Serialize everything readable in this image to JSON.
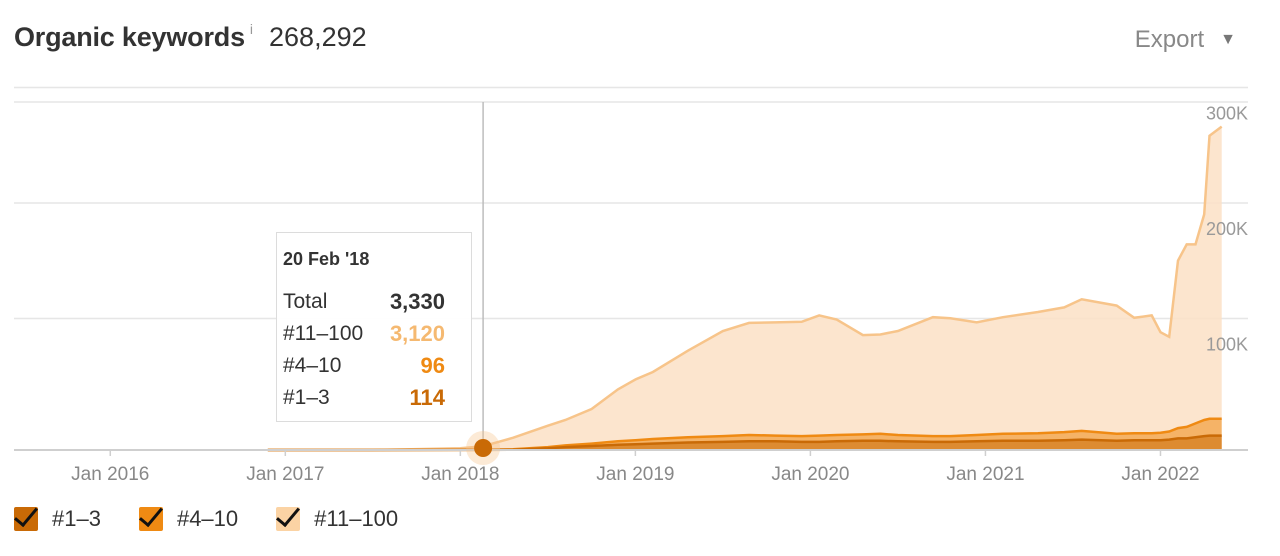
{
  "header": {
    "title": "Organic keywords",
    "info_icon": "i",
    "total": "268,292",
    "export_label": "Export",
    "export_caret": "▼"
  },
  "colors": {
    "band_1_3": "#c96a06",
    "band_4_10": "#ef8a13",
    "band_11_100": "#f7c48a",
    "fill_11_100": "#fbe1c5"
  },
  "tooltip": {
    "date": "20 Feb '18",
    "rows": [
      {
        "label": "Total",
        "value": "3,330",
        "color": "#333333"
      },
      {
        "label": "#11–100",
        "value": "3,120",
        "color": "#f5b971"
      },
      {
        "label": "#4–10",
        "value": "96",
        "color": "#ef8a13"
      },
      {
        "label": "#1–3",
        "value": "114",
        "color": "#c96a06"
      }
    ]
  },
  "legend": [
    {
      "label": "#1–3",
      "color": "#c96a06",
      "checked": true
    },
    {
      "label": "#4–10",
      "color": "#ef8a13",
      "checked": true
    },
    {
      "label": "#11–100",
      "color": "#fbd3a4",
      "checked": true
    }
  ],
  "chart_data": {
    "type": "area",
    "stacked": true,
    "x_ticks": [
      "Jan 2016",
      "Jan 2017",
      "Jan 2018",
      "Jan 2019",
      "Jan 2020",
      "Jan 2021",
      "Jan 2022"
    ],
    "y_ticks": [
      "100K",
      "200K",
      "300K"
    ],
    "ylim": [
      0,
      300000
    ],
    "xlim": [
      2015.45,
      2022.5
    ],
    "grid": true,
    "hover_x": 2018.13,
    "x": [
      2016.9,
      2017.5,
      2018.0,
      2018.13,
      2018.3,
      2018.5,
      2018.6,
      2018.75,
      2018.9,
      2019.0,
      2019.1,
      2019.3,
      2019.5,
      2019.65,
      2019.8,
      2019.95,
      2020.05,
      2020.15,
      2020.3,
      2020.4,
      2020.5,
      2020.7,
      2020.8,
      2020.95,
      2021.1,
      2021.3,
      2021.45,
      2021.55,
      2021.75,
      2021.85,
      2021.95,
      2022.0,
      2022.05,
      2022.1,
      2022.15,
      2022.2,
      2022.25,
      2022.28,
      2022.35
    ],
    "series": [
      {
        "name": "#1–3",
        "values": [
          0,
          0,
          50,
          114,
          300,
          1500,
          2500,
          3500,
          4500,
          5000,
          5500,
          6500,
          7000,
          7500,
          7500,
          7000,
          7000,
          7500,
          8000,
          8000,
          7500,
          7000,
          7000,
          7500,
          8000,
          8000,
          8500,
          9000,
          8000,
          8500,
          8500,
          8500,
          9000,
          10000,
          10000,
          11000,
          12000,
          12500,
          12500
        ]
      },
      {
        "name": "#4–10",
        "values": [
          0,
          0,
          40,
          96,
          300,
          1000,
          1500,
          2000,
          3000,
          3500,
          4000,
          4500,
          5000,
          5500,
          5000,
          5000,
          5500,
          5500,
          5500,
          6000,
          5500,
          5000,
          5000,
          5500,
          6000,
          6500,
          7000,
          7500,
          6000,
          6000,
          6000,
          6500,
          7000,
          9000,
          10000,
          12000,
          14000,
          14500,
          14500
        ]
      },
      {
        "name": "#11–100",
        "values": [
          0,
          0,
          1500,
          3120,
          10000,
          18500,
          22000,
          30000,
          45000,
          52500,
          58000,
          75000,
          91000,
          97000,
          98000,
          99000,
          104000,
          100000,
          86000,
          86000,
          90000,
          103000,
          102000,
          97500,
          101000,
          105000,
          108000,
          114000,
          111000,
          100000,
          102000,
          87000,
          82000,
          145000,
          158000,
          155000,
          178000,
          245000,
          253000
        ]
      }
    ]
  }
}
